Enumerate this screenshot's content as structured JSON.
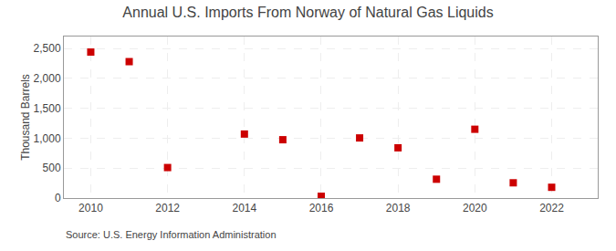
{
  "chart_data": {
    "type": "scatter",
    "title": "Annual U.S. Imports From Norway of Natural Gas Liquids",
    "ylabel": "Thousand Barrels",
    "annotations": [
      "Source: U.S. Energy Information Administration"
    ],
    "x": [
      2010,
      2011,
      2012,
      2014,
      2015,
      2016,
      2017,
      2018,
      2019,
      2020,
      2021,
      2022
    ],
    "values": [
      2440,
      2280,
      510,
      1070,
      975,
      30,
      1005,
      840,
      315,
      1150,
      255,
      180
    ],
    "color": "#cc0000",
    "marker": "square",
    "xlim": [
      2009.3,
      2023.2
    ],
    "ylim": [
      0,
      2700
    ],
    "xticks": [
      2010,
      2012,
      2014,
      2016,
      2018,
      2020,
      2022
    ],
    "yticks": [
      0,
      500,
      {
        "value": 1000,
        "label": "1,000"
      },
      {
        "value": 1500,
        "label": "1,500"
      },
      {
        "value": 2000,
        "label": "2,000"
      },
      {
        "value": 2500,
        "label": "2,500"
      }
    ],
    "grid": true
  }
}
